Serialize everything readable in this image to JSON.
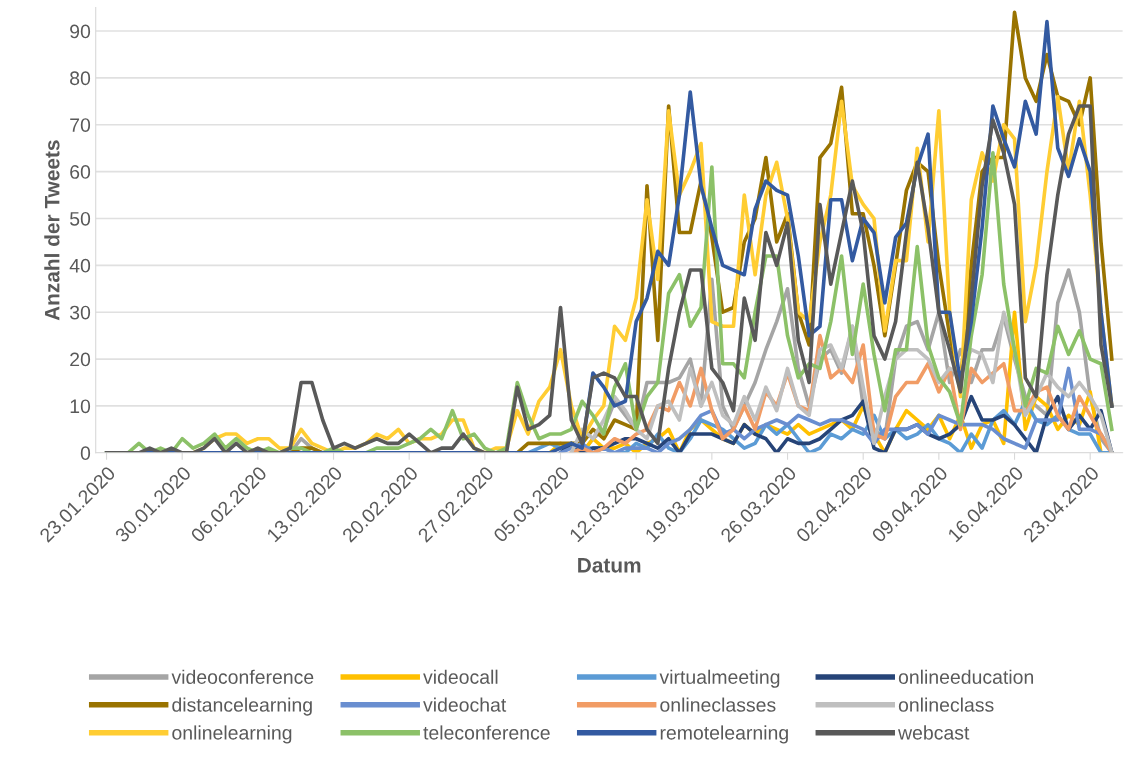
{
  "chart_data": {
    "type": "line",
    "xlabel": "Datum",
    "ylabel": "Anzahl der Tweets",
    "x": [
      "2020-01-23",
      "2020-01-24",
      "2020-01-25",
      "2020-01-26",
      "2020-01-27",
      "2020-01-28",
      "2020-01-29",
      "2020-01-30",
      "2020-01-31",
      "2020-02-01",
      "2020-02-02",
      "2020-02-03",
      "2020-02-04",
      "2020-02-05",
      "2020-02-06",
      "2020-02-07",
      "2020-02-08",
      "2020-02-09",
      "2020-02-10",
      "2020-02-11",
      "2020-02-12",
      "2020-02-13",
      "2020-02-14",
      "2020-02-15",
      "2020-02-16",
      "2020-02-17",
      "2020-02-18",
      "2020-02-19",
      "2020-02-20",
      "2020-02-21",
      "2020-02-22",
      "2020-02-23",
      "2020-02-24",
      "2020-02-25",
      "2020-02-26",
      "2020-02-27",
      "2020-02-28",
      "2020-02-29",
      "2020-03-01",
      "2020-03-02",
      "2020-03-03",
      "2020-03-04",
      "2020-03-05",
      "2020-03-06",
      "2020-03-07",
      "2020-03-08",
      "2020-03-09",
      "2020-03-10",
      "2020-03-11",
      "2020-03-12",
      "2020-03-13",
      "2020-03-14",
      "2020-03-15",
      "2020-03-16",
      "2020-03-17",
      "2020-03-18",
      "2020-03-19",
      "2020-03-20",
      "2020-03-21",
      "2020-03-22",
      "2020-03-23",
      "2020-03-24",
      "2020-03-25",
      "2020-03-26",
      "2020-03-27",
      "2020-03-28",
      "2020-03-29",
      "2020-03-30",
      "2020-03-31",
      "2020-04-01",
      "2020-04-02",
      "2020-04-03",
      "2020-04-04",
      "2020-04-05",
      "2020-04-06",
      "2020-04-07",
      "2020-04-08",
      "2020-04-09",
      "2020-04-10",
      "2020-04-11",
      "2020-04-12",
      "2020-04-13",
      "2020-04-14",
      "2020-04-15",
      "2020-04-16",
      "2020-04-17",
      "2020-04-18",
      "2020-04-19",
      "2020-04-20",
      "2020-04-21",
      "2020-04-22",
      "2020-04-23",
      "2020-04-24",
      "2020-04-25"
    ],
    "xlim": [
      "2020-01-22",
      "2020-04-26"
    ],
    "xticks": [
      {
        "value": "2020-01-23",
        "label": "23.01.2020"
      },
      {
        "value": "2020-01-30",
        "label": "30.01.2020"
      },
      {
        "value": "2020-02-06",
        "label": "06.02.2020"
      },
      {
        "value": "2020-02-13",
        "label": "13.02.2020"
      },
      {
        "value": "2020-02-20",
        "label": "20.02.2020"
      },
      {
        "value": "2020-02-27",
        "label": "27.02.2020"
      },
      {
        "value": "2020-03-05",
        "label": "05.03.2020"
      },
      {
        "value": "2020-03-12",
        "label": "12.03.2020"
      },
      {
        "value": "2020-03-19",
        "label": "19.03.2020"
      },
      {
        "value": "2020-03-26",
        "label": "26.03.2020"
      },
      {
        "value": "2020-04-02",
        "label": "02.04.2020"
      },
      {
        "value": "2020-04-09",
        "label": "09.04.2020"
      },
      {
        "value": "2020-04-16",
        "label": "16.04.2020"
      },
      {
        "value": "2020-04-23",
        "label": "23.04.2020"
      }
    ],
    "ylim": [
      0,
      95
    ],
    "yticks": [
      0,
      10,
      20,
      30,
      40,
      50,
      60,
      70,
      80,
      90
    ],
    "grid": "y",
    "legend": "bottom",
    "marker": "none",
    "line_style": "solid",
    "series": [
      {
        "name": "videoconference",
        "color": "#a5a5a5",
        "values": [
          null,
          null,
          null,
          null,
          null,
          null,
          null,
          null,
          null,
          null,
          null,
          null,
          null,
          null,
          null,
          null,
          null,
          0,
          3,
          1,
          0,
          null,
          null,
          null,
          null,
          null,
          null,
          null,
          null,
          null,
          null,
          null,
          null,
          null,
          null,
          null,
          null,
          null,
          null,
          null,
          null,
          null,
          null,
          null,
          0,
          3,
          5,
          11,
          8,
          5,
          15,
          15,
          15,
          16,
          20,
          10,
          37,
          10,
          5,
          10,
          15,
          22,
          28,
          35,
          18,
          10,
          20,
          22,
          17,
          27,
          10,
          5,
          3,
          20,
          27,
          28,
          22,
          30,
          15,
          22,
          15,
          22,
          22,
          29,
          20,
          12,
          10,
          8,
          32,
          39,
          30,
          12,
          3,
          0
        ]
      },
      {
        "name": "videocall",
        "color": "#ffc000",
        "values": [
          null,
          null,
          null,
          null,
          null,
          null,
          null,
          null,
          null,
          null,
          null,
          null,
          null,
          null,
          null,
          null,
          null,
          null,
          null,
          null,
          null,
          null,
          null,
          null,
          null,
          null,
          null,
          null,
          null,
          null,
          null,
          null,
          null,
          null,
          null,
          null,
          null,
          null,
          null,
          null,
          null,
          0,
          2,
          1,
          0,
          3,
          1,
          1,
          2,
          0,
          2,
          3,
          5,
          0,
          5,
          7,
          5,
          3,
          2,
          6,
          4,
          6,
          5,
          4,
          6,
          4,
          5,
          6,
          7,
          5,
          10,
          4,
          0,
          5,
          9,
          7,
          5,
          8,
          3,
          8,
          1,
          6,
          7,
          2,
          30,
          5,
          12,
          10,
          5,
          8,
          6,
          13,
          0,
          0
        ]
      },
      {
        "name": "virtualmeeting",
        "color": "#5b9bd5",
        "values": [
          null,
          null,
          null,
          null,
          null,
          null,
          null,
          null,
          null,
          null,
          null,
          null,
          null,
          null,
          null,
          null,
          null,
          null,
          null,
          null,
          null,
          null,
          null,
          null,
          null,
          null,
          null,
          null,
          null,
          null,
          null,
          null,
          null,
          null,
          null,
          null,
          null,
          null,
          null,
          0,
          1,
          2,
          1,
          2,
          1,
          1,
          1,
          0,
          0,
          2,
          1,
          4,
          1,
          0,
          3,
          7,
          6,
          5,
          3,
          1,
          2,
          6,
          4,
          6,
          3,
          0,
          1,
          4,
          3,
          5,
          4,
          8,
          3,
          5,
          3,
          4,
          6,
          3,
          2,
          0,
          4,
          1,
          7,
          9,
          6,
          11,
          7,
          6,
          8,
          5,
          4,
          4,
          0,
          0
        ]
      },
      {
        "name": "onlineeducation",
        "color": "#264478",
        "values": [
          null,
          null,
          null,
          null,
          null,
          null,
          null,
          null,
          null,
          null,
          null,
          null,
          null,
          null,
          null,
          null,
          null,
          null,
          null,
          null,
          null,
          null,
          null,
          null,
          null,
          null,
          null,
          null,
          null,
          null,
          null,
          null,
          null,
          null,
          null,
          null,
          null,
          null,
          null,
          null,
          null,
          null,
          0,
          2,
          0,
          1,
          1,
          2,
          3,
          3,
          2,
          1,
          3,
          0,
          4,
          4,
          4,
          3,
          2,
          6,
          4,
          3,
          0,
          3,
          2,
          2,
          3,
          5,
          7,
          8,
          11,
          1,
          0,
          5,
          5,
          6,
          4,
          3,
          4,
          6,
          12,
          7,
          7,
          8,
          6,
          3,
          0,
          8,
          12,
          5,
          8,
          5,
          9,
          0
        ]
      },
      {
        "name": "distancelearning",
        "color": "#997300",
        "values": [
          null,
          null,
          null,
          null,
          null,
          null,
          null,
          null,
          null,
          null,
          null,
          null,
          null,
          null,
          null,
          null,
          null,
          0,
          1,
          1,
          0,
          null,
          null,
          null,
          null,
          null,
          null,
          null,
          null,
          null,
          null,
          null,
          null,
          null,
          null,
          null,
          null,
          null,
          0,
          2,
          2,
          2,
          2,
          2,
          2,
          5,
          3,
          7,
          6,
          5,
          57,
          24,
          74,
          47,
          47,
          58,
          46,
          30,
          31,
          45,
          50,
          63,
          45,
          51,
          30,
          23,
          63,
          66,
          78,
          51,
          51,
          40,
          25,
          40,
          56,
          62,
          60,
          40,
          25,
          15,
          40,
          60,
          63,
          63,
          94,
          80,
          75,
          85,
          76,
          75,
          70,
          80,
          45,
          20
        ]
      },
      {
        "name": "videochat",
        "color": "#698ed0",
        "values": [
          null,
          null,
          null,
          null,
          null,
          null,
          null,
          null,
          null,
          null,
          null,
          null,
          null,
          null,
          null,
          null,
          null,
          null,
          null,
          null,
          null,
          null,
          null,
          null,
          null,
          null,
          null,
          null,
          null,
          null,
          null,
          null,
          null,
          null,
          null,
          null,
          null,
          null,
          null,
          null,
          null,
          null,
          0,
          1,
          2,
          0,
          1,
          0,
          1,
          1,
          1,
          0,
          2,
          3,
          5,
          8,
          9,
          4,
          5,
          3,
          5,
          6,
          7,
          6,
          8,
          7,
          6,
          7,
          7,
          6,
          5,
          2,
          5,
          5,
          5,
          6,
          4,
          8,
          7,
          6,
          6,
          6,
          5,
          3,
          2,
          1,
          7,
          7,
          7,
          18,
          5,
          5,
          4,
          0
        ]
      },
      {
        "name": "onlineclasses",
        "color": "#f19c65",
        "values": [
          null,
          null,
          null,
          null,
          null,
          null,
          null,
          null,
          null,
          null,
          null,
          null,
          null,
          null,
          null,
          null,
          null,
          null,
          null,
          null,
          null,
          null,
          null,
          null,
          null,
          null,
          null,
          null,
          null,
          null,
          null,
          null,
          null,
          null,
          null,
          null,
          null,
          null,
          null,
          null,
          null,
          null,
          null,
          0,
          1,
          0,
          1,
          3,
          2,
          4,
          5,
          10,
          9,
          15,
          10,
          18,
          9,
          3,
          5,
          10,
          5,
          13,
          10,
          17,
          10,
          9,
          25,
          16,
          18,
          15,
          23,
          4,
          3,
          12,
          15,
          15,
          19,
          13,
          18,
          5,
          18,
          15,
          17,
          19,
          9,
          9,
          13,
          14,
          8,
          5,
          12,
          8,
          4,
          0
        ]
      },
      {
        "name": "onlineclass",
        "color": "#bfbfbf",
        "values": [
          null,
          null,
          null,
          null,
          null,
          null,
          null,
          null,
          null,
          null,
          null,
          null,
          null,
          null,
          null,
          null,
          null,
          null,
          null,
          null,
          null,
          null,
          null,
          null,
          null,
          null,
          null,
          null,
          null,
          null,
          null,
          null,
          null,
          null,
          null,
          null,
          null,
          null,
          null,
          null,
          null,
          null,
          null,
          0,
          5,
          3,
          7,
          12,
          9,
          5,
          3,
          10,
          11,
          7,
          18,
          10,
          15,
          8,
          6,
          12,
          7,
          14,
          9,
          18,
          10,
          8,
          22,
          23,
          18,
          27,
          14,
          2,
          12,
          20,
          22,
          22,
          20,
          15,
          18,
          17,
          22,
          21,
          15,
          30,
          22,
          8,
          12,
          17,
          14,
          12,
          15,
          12,
          8,
          0
        ]
      },
      {
        "name": "onlinelearning",
        "color": "#ffcd33",
        "values": [
          null,
          null,
          null,
          null,
          null,
          null,
          null,
          null,
          0,
          1,
          3,
          4,
          4,
          2,
          3,
          3,
          1,
          1,
          5,
          2,
          1,
          0,
          1,
          1,
          2,
          4,
          3,
          5,
          2,
          3,
          3,
          4,
          7,
          7,
          1,
          0,
          1,
          1,
          9,
          4,
          11,
          14,
          22,
          10,
          3,
          7,
          10,
          27,
          24,
          33,
          54,
          37,
          73,
          55,
          60,
          66,
          28,
          27,
          27,
          55,
          38,
          55,
          62,
          50,
          30,
          28,
          45,
          55,
          75,
          57,
          53,
          50,
          26,
          41,
          41,
          65,
          45,
          73,
          30,
          12,
          54,
          64,
          58,
          70,
          67,
          28,
          40,
          60,
          76,
          60,
          75,
          55,
          30,
          10
        ]
      },
      {
        "name": "teleconference",
        "color": "#8cc168",
        "values": [
          0,
          0,
          0,
          2,
          0,
          1,
          0,
          3,
          1,
          2,
          4,
          1,
          3,
          1,
          0,
          1,
          0,
          1,
          1,
          0,
          0,
          1,
          0,
          0,
          0,
          1,
          1,
          1,
          2,
          3,
          5,
          3,
          9,
          3,
          4,
          1,
          0,
          1,
          15,
          8,
          3,
          4,
          4,
          5,
          11,
          8,
          4,
          14,
          19,
          5,
          12,
          15,
          34,
          38,
          27,
          31,
          61,
          19,
          19,
          16,
          30,
          42,
          42,
          25,
          16,
          19,
          18,
          28,
          42,
          21,
          36,
          21,
          9,
          22,
          22,
          44,
          23,
          16,
          13,
          6,
          25,
          38,
          64,
          36,
          22,
          10,
          18,
          17,
          27,
          21,
          26,
          20,
          19,
          5
        ]
      },
      {
        "name": "remotelearning",
        "color": "#335aa1",
        "values": [
          null,
          null,
          0,
          0,
          0,
          0,
          0,
          0,
          0,
          0,
          0,
          0,
          0,
          0,
          0,
          0,
          0,
          0,
          0,
          0,
          0,
          0,
          0,
          0,
          0,
          0,
          0,
          0,
          0,
          0,
          0,
          0,
          0,
          0,
          0,
          0,
          0,
          0,
          0,
          0,
          0,
          0,
          1,
          2,
          1,
          17,
          14,
          10,
          11,
          28,
          33,
          43,
          40,
          55,
          77,
          57,
          48,
          40,
          39,
          38,
          52,
          58,
          56,
          55,
          42,
          25,
          27,
          54,
          54,
          41,
          50,
          47,
          32,
          46,
          49,
          61,
          68,
          30,
          30,
          15,
          28,
          48,
          74,
          67,
          61,
          75,
          68,
          92,
          65,
          59,
          67,
          60,
          30,
          10
        ]
      },
      {
        "name": "webcast",
        "color": "#595959",
        "values": [
          0,
          0,
          0,
          0,
          1,
          0,
          1,
          0,
          0,
          1,
          3,
          0,
          2,
          0,
          1,
          0,
          0,
          1,
          15,
          15,
          7,
          1,
          2,
          1,
          2,
          3,
          2,
          2,
          4,
          2,
          0,
          1,
          1,
          4,
          1,
          0,
          0,
          0,
          14,
          5,
          6,
          8,
          31,
          7,
          2,
          16,
          17,
          16,
          12,
          12,
          5,
          2,
          18,
          30,
          39,
          39,
          18,
          15,
          9,
          33,
          24,
          47,
          40,
          49,
          24,
          15,
          53,
          36,
          47,
          58,
          47,
          25,
          20,
          28,
          47,
          62,
          48,
          30,
          22,
          13,
          33,
          57,
          71,
          64,
          53,
          16,
          12,
          38,
          55,
          68,
          74,
          74,
          23,
          10
        ]
      }
    ]
  }
}
